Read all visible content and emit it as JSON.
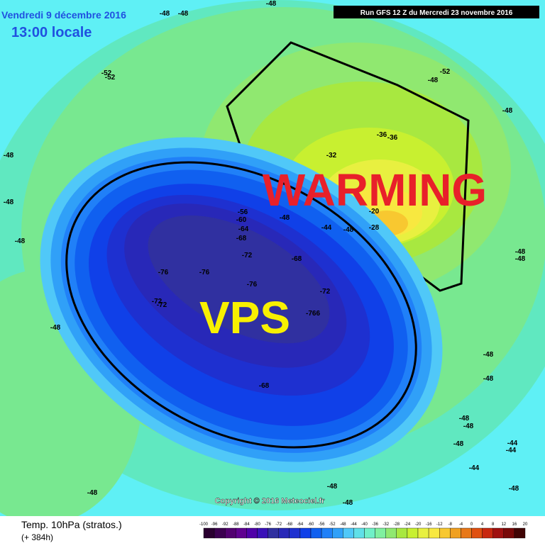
{
  "header": {
    "date": "Vendredi 9 décembre 2016",
    "time": "13:00 locale",
    "run": "Run GFS 12 Z du Mercredi 23 novembre 2016"
  },
  "overlay": {
    "warming": "WARMING",
    "vps": "VPS"
  },
  "copyright": "Copyright © 2016 Meteociel.fr",
  "footer": {
    "title": "Temp. 10hPa (stratos.)",
    "lead": "(+ 384h)"
  },
  "scale": {
    "labels": [
      -100,
      -96,
      -92,
      -88,
      -84,
      -80,
      -76,
      -72,
      -68,
      -64,
      -60,
      -56,
      -52,
      -48,
      -44,
      -40,
      -36,
      -32,
      -28,
      -24,
      -20,
      -16,
      -12,
      -8,
      -4,
      0,
      4,
      8,
      12,
      16,
      20
    ],
    "colors": [
      "#2a0030",
      "#3c0050",
      "#520070",
      "#600090",
      "#5000a8",
      "#3a10b8",
      "#3030a0",
      "#2828b8",
      "#1e30d0",
      "#1040e8",
      "#1060f0",
      "#2080f8",
      "#30a0f8",
      "#50c8f8",
      "#60e0e8",
      "#70f0c8",
      "#80f0a0",
      "#90e870",
      "#a8e840",
      "#c8f030",
      "#e8f040",
      "#f8e840",
      "#f8c830",
      "#f0a020",
      "#e87818",
      "#e05010",
      "#c82810",
      "#a01010",
      "#780808",
      "#400404"
    ]
  },
  "contour_labels": [
    "-48",
    "-48",
    "-52",
    "-52",
    "-48",
    "-48",
    "-48",
    "-48",
    "-48",
    "-52",
    "-48",
    "-36",
    "-36",
    "-32",
    "-56",
    "-60",
    "-64",
    "-68",
    "-48",
    "-44",
    "-48",
    "-20",
    "-28",
    "-72",
    "-68",
    "-76",
    "-76",
    "-76",
    "-72",
    "-72",
    "-72",
    "-766",
    "-68",
    "-48",
    "-48",
    "-48",
    "-48",
    "-48",
    "-48",
    "-48",
    "-44",
    "-44",
    "-44",
    "-48",
    "-48",
    "-48",
    "-48",
    "-48"
  ]
}
